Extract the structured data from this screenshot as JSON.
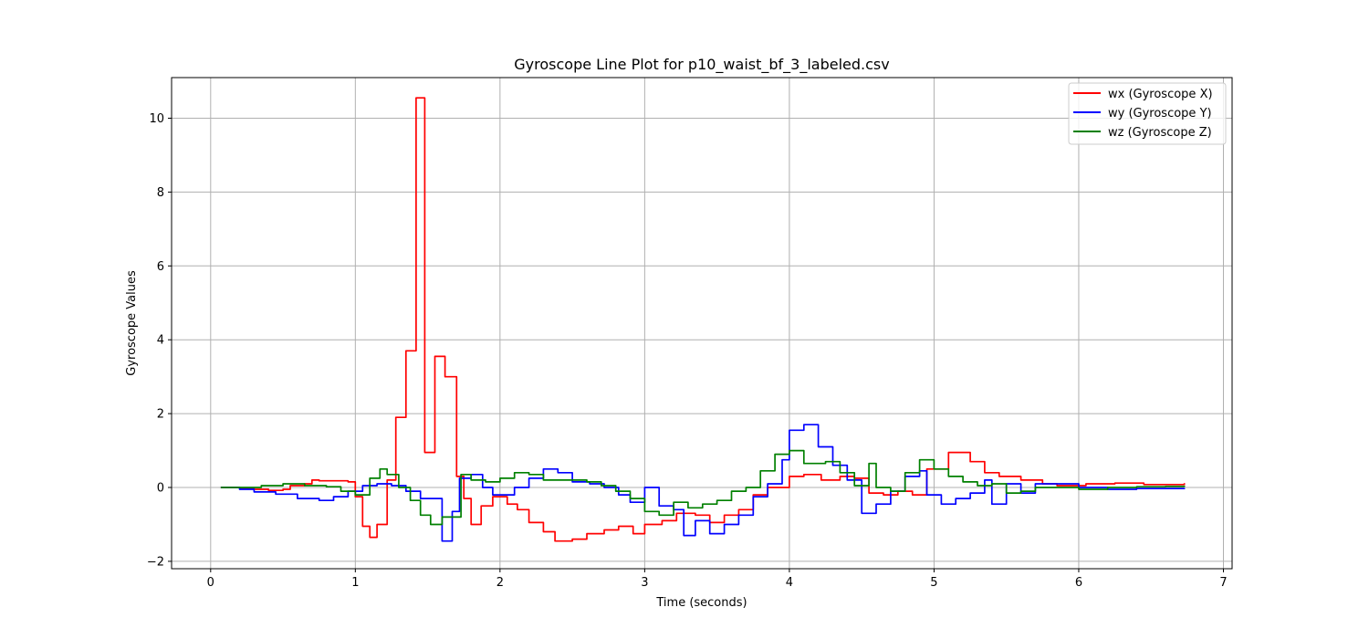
{
  "chart_data": {
    "type": "line",
    "title": "Gyroscope Line Plot for p10_waist_bf_3_labeled.csv",
    "xlabel": "Time (seconds)",
    "ylabel": "Gyroscope Values",
    "xlim": [
      -0.27,
      7.06
    ],
    "ylim": [
      -2.2,
      11.1
    ],
    "xticks": [
      0,
      1,
      2,
      3,
      4,
      5,
      6,
      7
    ],
    "yticks": [
      -2,
      0,
      2,
      4,
      6,
      8,
      10
    ],
    "grid": true,
    "legend_position": "top-right",
    "series": [
      {
        "name": "wx (Gyroscope X)",
        "color": "#ff0000",
        "points": [
          [
            0.07,
            0
          ],
          [
            0.15,
            0
          ],
          [
            0.2,
            -0.02
          ],
          [
            0.3,
            -0.05
          ],
          [
            0.4,
            -0.08
          ],
          [
            0.5,
            -0.05
          ],
          [
            0.55,
            0.05
          ],
          [
            0.65,
            0.1
          ],
          [
            0.7,
            0.2
          ],
          [
            0.75,
            0.18
          ],
          [
            0.85,
            0.18
          ],
          [
            0.95,
            0.15
          ],
          [
            1.0,
            -0.25
          ],
          [
            1.05,
            -1.05
          ],
          [
            1.1,
            -1.35
          ],
          [
            1.15,
            -1.0
          ],
          [
            1.22,
            0.2
          ],
          [
            1.28,
            1.9
          ],
          [
            1.35,
            3.7
          ],
          [
            1.42,
            10.55
          ],
          [
            1.48,
            0.95
          ],
          [
            1.55,
            3.55
          ],
          [
            1.62,
            3.0
          ],
          [
            1.7,
            0.3
          ],
          [
            1.75,
            -0.3
          ],
          [
            1.8,
            -1.0
          ],
          [
            1.87,
            -0.5
          ],
          [
            1.95,
            -0.25
          ],
          [
            2.05,
            -0.45
          ],
          [
            2.12,
            -0.6
          ],
          [
            2.2,
            -0.95
          ],
          [
            2.3,
            -1.2
          ],
          [
            2.38,
            -1.45
          ],
          [
            2.5,
            -1.4
          ],
          [
            2.6,
            -1.25
          ],
          [
            2.72,
            -1.15
          ],
          [
            2.82,
            -1.05
          ],
          [
            2.92,
            -1.25
          ],
          [
            3.0,
            -1.0
          ],
          [
            3.12,
            -0.9
          ],
          [
            3.22,
            -0.7
          ],
          [
            3.35,
            -0.75
          ],
          [
            3.45,
            -0.95
          ],
          [
            3.55,
            -0.75
          ],
          [
            3.65,
            -0.6
          ],
          [
            3.75,
            -0.2
          ],
          [
            3.85,
            0
          ],
          [
            3.95,
            0
          ],
          [
            4.0,
            0.3
          ],
          [
            4.1,
            0.35
          ],
          [
            4.22,
            0.2
          ],
          [
            4.35,
            0.3
          ],
          [
            4.45,
            0.25
          ],
          [
            4.55,
            -0.15
          ],
          [
            4.65,
            -0.2
          ],
          [
            4.75,
            -0.1
          ],
          [
            4.85,
            -0.2
          ],
          [
            4.95,
            0.5
          ],
          [
            5.0,
            0.5
          ],
          [
            5.1,
            0.95
          ],
          [
            5.25,
            0.7
          ],
          [
            5.35,
            0.4
          ],
          [
            5.45,
            0.3
          ],
          [
            5.6,
            0.2
          ],
          [
            5.75,
            0.1
          ],
          [
            5.85,
            0.05
          ],
          [
            5.95,
            0.05
          ],
          [
            6.05,
            0.1
          ],
          [
            6.25,
            0.12
          ],
          [
            6.45,
            0.08
          ],
          [
            6.6,
            0.08
          ],
          [
            6.73,
            0.12
          ]
        ]
      },
      {
        "name": "wy (Gyroscope Y)",
        "color": "#0000ff",
        "points": [
          [
            0.07,
            0
          ],
          [
            0.2,
            -0.05
          ],
          [
            0.3,
            -0.12
          ],
          [
            0.45,
            -0.18
          ],
          [
            0.6,
            -0.3
          ],
          [
            0.75,
            -0.35
          ],
          [
            0.85,
            -0.25
          ],
          [
            0.95,
            -0.1
          ],
          [
            1.05,
            0.05
          ],
          [
            1.15,
            0.1
          ],
          [
            1.25,
            0.05
          ],
          [
            1.35,
            -0.1
          ],
          [
            1.45,
            -0.3
          ],
          [
            1.55,
            -0.3
          ],
          [
            1.6,
            -1.45
          ],
          [
            1.67,
            -0.65
          ],
          [
            1.72,
            0.25
          ],
          [
            1.8,
            0.35
          ],
          [
            1.88,
            0
          ],
          [
            1.95,
            -0.2
          ],
          [
            2.1,
            0
          ],
          [
            2.2,
            0.25
          ],
          [
            2.3,
            0.5
          ],
          [
            2.4,
            0.4
          ],
          [
            2.5,
            0.15
          ],
          [
            2.62,
            0.1
          ],
          [
            2.72,
            0
          ],
          [
            2.82,
            -0.2
          ],
          [
            2.9,
            -0.4
          ],
          [
            3.0,
            0
          ],
          [
            3.1,
            -0.5
          ],
          [
            3.2,
            -0.6
          ],
          [
            3.27,
            -1.3
          ],
          [
            3.35,
            -0.9
          ],
          [
            3.45,
            -1.25
          ],
          [
            3.55,
            -1.0
          ],
          [
            3.65,
            -0.75
          ],
          [
            3.75,
            -0.25
          ],
          [
            3.85,
            0.1
          ],
          [
            3.95,
            0.75
          ],
          [
            4.0,
            1.55
          ],
          [
            4.1,
            1.7
          ],
          [
            4.2,
            1.1
          ],
          [
            4.3,
            0.6
          ],
          [
            4.4,
            0.2
          ],
          [
            4.5,
            -0.7
          ],
          [
            4.6,
            -0.45
          ],
          [
            4.7,
            -0.1
          ],
          [
            4.8,
            0.3
          ],
          [
            4.9,
            0.45
          ],
          [
            4.95,
            -0.2
          ],
          [
            5.05,
            -0.45
          ],
          [
            5.15,
            -0.3
          ],
          [
            5.25,
            -0.15
          ],
          [
            5.35,
            0.2
          ],
          [
            5.4,
            -0.45
          ],
          [
            5.5,
            0.1
          ],
          [
            5.6,
            -0.15
          ],
          [
            5.7,
            0.1
          ],
          [
            5.85,
            0.1
          ],
          [
            6.0,
            0
          ],
          [
            6.2,
            -0.05
          ],
          [
            6.4,
            -0.03
          ],
          [
            6.73,
            -0.02
          ]
        ]
      },
      {
        "name": "wz (Gyroscope Z)",
        "color": "#008000",
        "points": [
          [
            0.07,
            0
          ],
          [
            0.2,
            0
          ],
          [
            0.35,
            0.05
          ],
          [
            0.5,
            0.1
          ],
          [
            0.65,
            0.05
          ],
          [
            0.8,
            0.02
          ],
          [
            0.9,
            -0.1
          ],
          [
            1.0,
            -0.2
          ],
          [
            1.1,
            0.25
          ],
          [
            1.17,
            0.5
          ],
          [
            1.22,
            0.35
          ],
          [
            1.3,
            0
          ],
          [
            1.38,
            -0.35
          ],
          [
            1.45,
            -0.75
          ],
          [
            1.52,
            -1.0
          ],
          [
            1.6,
            -0.8
          ],
          [
            1.67,
            -0.8
          ],
          [
            1.73,
            0.35
          ],
          [
            1.8,
            0.2
          ],
          [
            1.9,
            0.15
          ],
          [
            2.0,
            0.25
          ],
          [
            2.1,
            0.4
          ],
          [
            2.2,
            0.35
          ],
          [
            2.3,
            0.2
          ],
          [
            2.45,
            0.2
          ],
          [
            2.6,
            0.15
          ],
          [
            2.7,
            0.05
          ],
          [
            2.8,
            -0.1
          ],
          [
            2.9,
            -0.3
          ],
          [
            3.0,
            -0.65
          ],
          [
            3.1,
            -0.75
          ],
          [
            3.2,
            -0.4
          ],
          [
            3.3,
            -0.55
          ],
          [
            3.4,
            -0.45
          ],
          [
            3.5,
            -0.35
          ],
          [
            3.6,
            -0.1
          ],
          [
            3.7,
            0
          ],
          [
            3.8,
            0.45
          ],
          [
            3.9,
            0.9
          ],
          [
            4.0,
            1.0
          ],
          [
            4.1,
            0.65
          ],
          [
            4.25,
            0.7
          ],
          [
            4.35,
            0.4
          ],
          [
            4.45,
            0.05
          ],
          [
            4.55,
            0.65
          ],
          [
            4.6,
            0
          ],
          [
            4.7,
            -0.1
          ],
          [
            4.8,
            0.4
          ],
          [
            4.9,
            0.75
          ],
          [
            5.0,
            0.5
          ],
          [
            5.1,
            0.3
          ],
          [
            5.2,
            0.15
          ],
          [
            5.3,
            0.05
          ],
          [
            5.4,
            0.1
          ],
          [
            5.5,
            -0.15
          ],
          [
            5.6,
            -0.1
          ],
          [
            5.7,
            0
          ],
          [
            5.85,
            0
          ],
          [
            6.0,
            -0.05
          ],
          [
            6.2,
            0
          ],
          [
            6.4,
            0.02
          ],
          [
            6.6,
            0.03
          ],
          [
            6.73,
            0.05
          ]
        ]
      }
    ]
  }
}
